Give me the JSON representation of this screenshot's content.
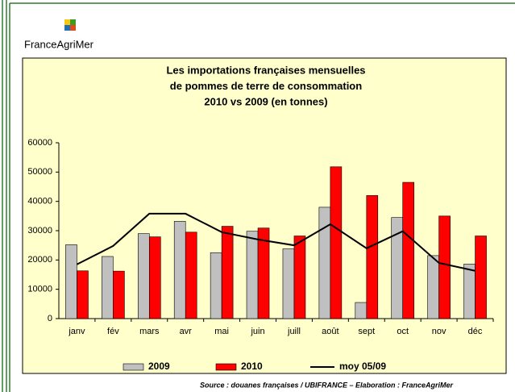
{
  "logo": "FranceAgriMer",
  "source": "Source : douanes françaises / UBIFRANCE – Elaboration : FranceAgriMer",
  "chart_data": {
    "type": "bar",
    "title": [
      "Les importations françaises mensuelles",
      "de pommes de terre de consommation",
      "2010 vs 2009 (en tonnes)"
    ],
    "categories": [
      "janv",
      "fév",
      "mars",
      "avr",
      "mai",
      "juin",
      "juill",
      "août",
      "sept",
      "oct",
      "nov",
      "déc"
    ],
    "series": [
      {
        "name": "2009",
        "color": "#c0c0c0",
        "values": [
          25200,
          21200,
          29000,
          33200,
          22500,
          29800,
          23800,
          38000,
          5500,
          34500,
          21500,
          18600
        ]
      },
      {
        "name": "2010",
        "color": "#ff0000",
        "values": [
          16300,
          16200,
          27900,
          29500,
          31500,
          30900,
          28200,
          51800,
          42000,
          46500,
          35000,
          28200
        ]
      },
      {
        "name": "moy 05/09",
        "color": "#000000",
        "type": "line",
        "values": [
          18500,
          24800,
          35800,
          35800,
          29500,
          27000,
          25000,
          32200,
          24000,
          29800,
          19000,
          16300
        ]
      }
    ],
    "ylim": [
      0,
      60000
    ],
    "yticks": [
      0,
      10000,
      20000,
      30000,
      40000,
      50000,
      60000
    ]
  }
}
